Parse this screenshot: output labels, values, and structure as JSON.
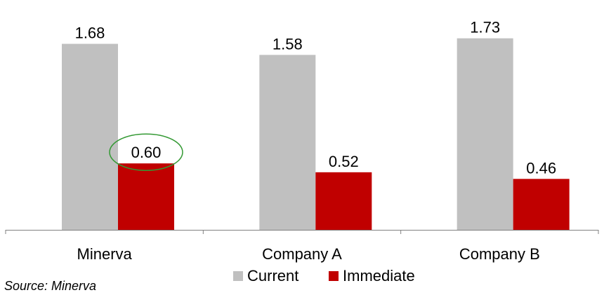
{
  "chart_data": {
    "type": "bar",
    "categories": [
      "Minerva",
      "Company A",
      "Company B"
    ],
    "series": [
      {
        "name": "Current",
        "values": [
          1.68,
          1.58,
          1.73
        ],
        "color": "#c0c0c0"
      },
      {
        "name": "Immediate",
        "values": [
          0.6,
          0.52,
          0.46
        ],
        "color": "#c00000"
      }
    ],
    "data_labels": [
      [
        "1.68",
        "1.58",
        "1.73"
      ],
      [
        "0.60",
        "0.52",
        "0.46"
      ]
    ],
    "ylim": [
      0,
      1.8
    ],
    "grid": false,
    "legend": {
      "position": "bottom",
      "items": [
        {
          "label": "Current",
          "color": "#c0c0c0"
        },
        {
          "label": "Immediate",
          "color": "#c00000"
        }
      ]
    },
    "highlight": {
      "series": 1,
      "index": 0,
      "color": "#339933"
    }
  },
  "source": "Source: Minerva"
}
